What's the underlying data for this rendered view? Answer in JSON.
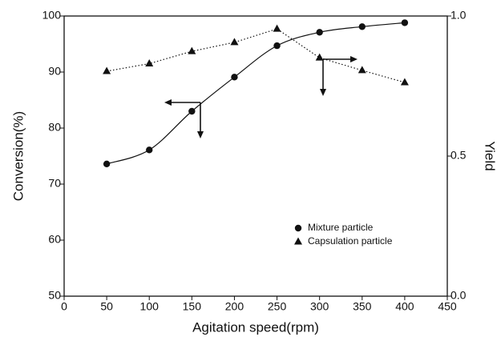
{
  "chart_data": {
    "type": "line",
    "x_label": "Agitation speed(rpm)",
    "y_label": "Conversion(%)",
    "y2_label": "Yield",
    "x": [
      50,
      100,
      150,
      200,
      250,
      300,
      350,
      400
    ],
    "series": [
      {
        "name": "Mixture particle",
        "color": "#111111",
        "marker": "circle",
        "line": "solid",
        "smooth": true,
        "values": [
          73.6,
          76.1,
          83,
          89.1,
          94.7,
          97.1,
          98.1,
          98.8
        ]
      },
      {
        "name": "Capsulation particle",
        "color": "#111111",
        "marker": "triangle",
        "line": "dotted",
        "axis": "y2",
        "values": [
          0.803,
          0.83,
          0.874,
          0.906,
          0.954,
          0.851,
          0.806,
          0.763
        ]
      }
    ],
    "xlim": [
      0,
      450
    ],
    "xticks": [
      0,
      50,
      100,
      150,
      200,
      250,
      300,
      350,
      400,
      450
    ],
    "ylim": [
      50,
      100
    ],
    "yticks": [
      50,
      60,
      70,
      80,
      90,
      100
    ],
    "y2lim": [
      0,
      1
    ],
    "y2ticks": [
      {
        "value": 0,
        "label": "0.0"
      },
      0.5,
      {
        "value": 1,
        "label": "1.0"
      }
    ],
    "grid": false,
    "legend": "lower right"
  }
}
